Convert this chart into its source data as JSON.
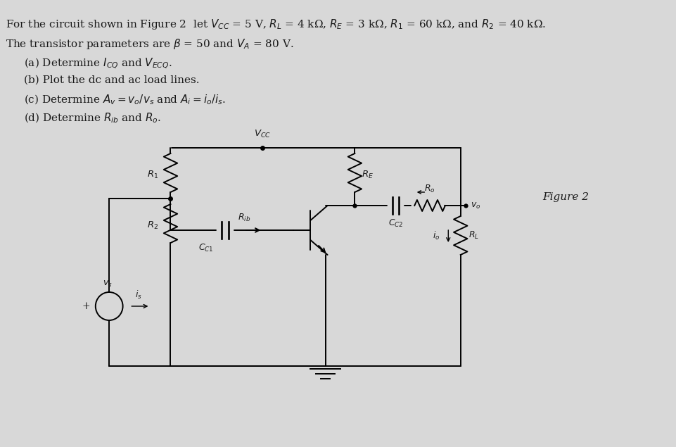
{
  "background_color": "#d8d8d8",
  "title_text": "For the circuit shown in Figure 2  let $V_{CC}$ = 5 V, $R_L$ = 4 kΩ, $R_E$ = 3 kΩ, $R_1$ = 60 kΩ, and $R_2$ = 40 kΩ.",
  "line2_text": "The transistor parameters are $\\beta$ = 50 and $V_A$ = 80 V.",
  "item_a": "(a) Determine $I_{CQ}$ and $V_{ECQ}$.",
  "item_b": "(b) Plot the dc and ac load lines.",
  "item_c": "(c) Determine $A_v = v_o / v_s$ and $A_i = i_o / i_s$.",
  "item_d": "(d) Determine $R_{ib}$ and $R_o$.",
  "figure_label": "Figure 2",
  "font_size_main": 11,
  "font_size_fig": 11,
  "text_color": "#1a1a1a"
}
